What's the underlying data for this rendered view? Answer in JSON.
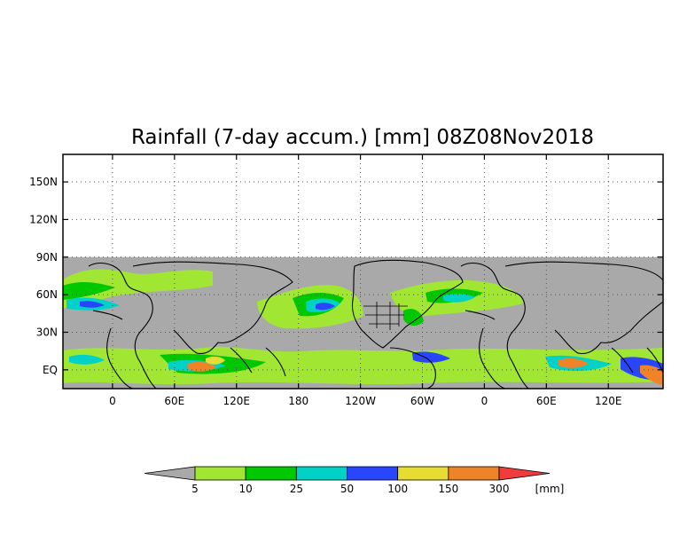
{
  "title": "Rainfall (7-day accum.) [mm] 08Z08Nov2018",
  "map": {
    "projection": "cylindrical",
    "land_color": "#a9a9a9",
    "no_data_color": "#ffffff",
    "coastline_color": "#000000",
    "gridline_style": "dotted",
    "y_ticks": [
      {
        "lat": 150,
        "label": "150N"
      },
      {
        "lat": 120,
        "label": "120N"
      },
      {
        "lat": 90,
        "label": "90N"
      },
      {
        "lat": 60,
        "label": "60N"
      },
      {
        "lat": 30,
        "label": "30N"
      },
      {
        "lat": 0,
        "label": "EQ"
      }
    ],
    "x_ticks": [
      {
        "lon": 0,
        "label": "0"
      },
      {
        "lon": 60,
        "label": "60E"
      },
      {
        "lon": 120,
        "label": "120E"
      },
      {
        "lon": 180,
        "label": "180"
      },
      {
        "lon": 240,
        "label": "120W"
      },
      {
        "lon": 300,
        "label": "60W"
      },
      {
        "lon": 360,
        "label": "0"
      },
      {
        "lon": 420,
        "label": "60E"
      },
      {
        "lon": 480,
        "label": "120E"
      }
    ],
    "lon_range": [
      -48,
      533
    ],
    "lat_range": [
      -15,
      172
    ],
    "data_lat_max": 90
  },
  "colorbar": {
    "unit": "[mm]",
    "under_color": "#a9a9a9",
    "over_color": "#f03c3c",
    "bins": [
      {
        "color": "#a0e632"
      },
      {
        "color": "#00c800"
      },
      {
        "color": "#00d2c8"
      },
      {
        "color": "#2846ff"
      },
      {
        "color": "#e6dc32"
      },
      {
        "color": "#f08228"
      }
    ],
    "labels": [
      "5",
      "10",
      "25",
      "50",
      "100",
      "150",
      "300"
    ]
  }
}
